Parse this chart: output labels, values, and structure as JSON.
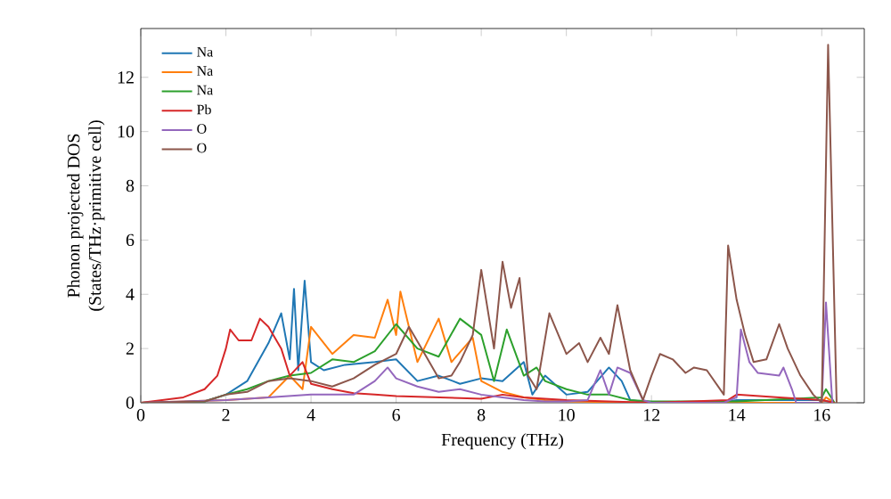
{
  "chart_data": {
    "type": "line",
    "xlabel": "Frequency (THz)",
    "ylabel": "Phonon projected DOS\n(States/THz·primitive cell)",
    "xlim": [
      0,
      17
    ],
    "ylim": [
      0,
      13.8
    ],
    "xticks": [
      0,
      2,
      4,
      6,
      8,
      10,
      12,
      14,
      16
    ],
    "yticks": [
      0,
      2,
      4,
      6,
      8,
      10,
      12
    ],
    "legend": "top left",
    "grid": false,
    "series": [
      {
        "name": "Na",
        "color": "#1f77b4",
        "x": [
          0,
          1.5,
          2,
          2.5,
          3,
          3.3,
          3.5,
          3.6,
          3.7,
          3.85,
          4,
          4.3,
          4.8,
          5.5,
          6,
          6.5,
          7,
          7.5,
          8,
          8.5,
          9,
          9.2,
          9.5,
          10,
          10.5,
          11,
          11.3,
          11.5,
          12,
          13.8,
          14,
          15,
          16,
          16.3
        ],
        "values": [
          0,
          0.05,
          0.3,
          0.8,
          2.2,
          3.3,
          1.6,
          4.2,
          1.2,
          4.5,
          1.5,
          1.2,
          1.4,
          1.5,
          1.6,
          0.8,
          1.0,
          0.7,
          0.9,
          0.8,
          1.5,
          0.3,
          1.0,
          0.3,
          0.4,
          1.3,
          0.8,
          0.1,
          0,
          0.05,
          0.1,
          0.1,
          0.1,
          0
        ]
      },
      {
        "name": "Na",
        "color": "#ff7f0e",
        "x": [
          0,
          2,
          3,
          3.5,
          3.8,
          4,
          4.5,
          5,
          5.5,
          5.8,
          6,
          6.1,
          6.5,
          7,
          7.3,
          7.8,
          8,
          8.5,
          9,
          9.5,
          10,
          12,
          16,
          16.1,
          16.3
        ],
        "values": [
          0,
          0.1,
          0.2,
          1.0,
          0.5,
          2.8,
          1.8,
          2.5,
          2.4,
          3.8,
          2.5,
          4.1,
          1.5,
          3.1,
          1.5,
          2.4,
          0.8,
          0.4,
          0.2,
          0.1,
          0.05,
          0,
          0,
          0.2,
          0
        ]
      },
      {
        "name": "Na",
        "color": "#2ca02c",
        "x": [
          0,
          1.5,
          2,
          2.5,
          3,
          3.5,
          4,
          4.5,
          5,
          5.5,
          6,
          6.5,
          7,
          7.5,
          8,
          8.3,
          8.6,
          9,
          9.3,
          9.5,
          10,
          10.5,
          11,
          11.5,
          12,
          14,
          16,
          16.1,
          16.3
        ],
        "values": [
          0,
          0.05,
          0.3,
          0.5,
          0.8,
          1.0,
          1.1,
          1.6,
          1.5,
          1.9,
          2.9,
          2.0,
          1.7,
          3.1,
          2.5,
          0.8,
          2.7,
          1.0,
          1.3,
          0.8,
          0.5,
          0.3,
          0.3,
          0.1,
          0.05,
          0.05,
          0.2,
          0.5,
          0
        ]
      },
      {
        "name": "Pb",
        "color": "#d62728",
        "x": [
          0,
          1,
          1.5,
          1.8,
          2,
          2.1,
          2.3,
          2.6,
          2.8,
          3,
          3.3,
          3.5,
          3.8,
          4,
          4.5,
          5,
          5.5,
          6,
          7,
          8,
          8.5,
          9,
          10,
          12,
          13.8,
          14,
          15,
          16,
          16.3
        ],
        "values": [
          0,
          0.2,
          0.5,
          1.0,
          2.0,
          2.7,
          2.3,
          2.3,
          3.1,
          2.8,
          2.0,
          1.0,
          1.5,
          0.7,
          0.5,
          0.35,
          0.3,
          0.25,
          0.2,
          0.15,
          0.3,
          0.2,
          0.1,
          0,
          0.1,
          0.3,
          0.2,
          0.1,
          0
        ]
      },
      {
        "name": "O",
        "color": "#9467bd",
        "x": [
          0,
          2,
          3,
          4,
          5,
          5.5,
          5.8,
          6,
          6.5,
          7,
          7.5,
          8,
          8.5,
          9,
          9.5,
          10,
          10.5,
          10.8,
          11,
          11.2,
          11.5,
          11.8,
          12,
          13.7,
          14,
          14.1,
          14.3,
          14.5,
          15,
          15.1,
          15.3,
          15.4,
          16,
          16.1,
          16.25
        ],
        "values": [
          0,
          0.1,
          0.2,
          0.3,
          0.3,
          0.8,
          1.3,
          0.9,
          0.6,
          0.4,
          0.5,
          0.3,
          0.2,
          0.1,
          0.05,
          0.05,
          0.1,
          1.2,
          0.3,
          1.3,
          1.1,
          0.1,
          0,
          0,
          0.2,
          2.7,
          1.5,
          1.1,
          1.0,
          1.3,
          0.5,
          0,
          0,
          3.7,
          0
        ]
      },
      {
        "name": "O",
        "color": "#8c564b",
        "x": [
          0,
          1.5,
          2,
          2.5,
          3,
          3.5,
          4,
          4.5,
          5,
          5.5,
          6,
          6.3,
          6.6,
          7,
          7.3,
          7.5,
          7.8,
          8,
          8.3,
          8.5,
          8.7,
          8.9,
          9.1,
          9.3,
          9.6,
          10,
          10.3,
          10.5,
          10.8,
          11,
          11.2,
          11.5,
          11.8,
          12,
          12.2,
          12.5,
          12.8,
          13,
          13.3,
          13.7,
          13.8,
          14,
          14.2,
          14.4,
          14.7,
          15,
          15.2,
          15.5,
          15.8,
          16,
          16.15,
          16.35
        ],
        "values": [
          0,
          0.05,
          0.3,
          0.4,
          0.8,
          0.9,
          0.8,
          0.6,
          0.9,
          1.4,
          1.8,
          2.8,
          2.0,
          0.9,
          1.0,
          1.5,
          2.5,
          4.9,
          2.0,
          5.2,
          3.5,
          4.6,
          1.0,
          0.5,
          3.3,
          1.8,
          2.2,
          1.5,
          2.4,
          1.8,
          3.6,
          1.2,
          0.1,
          1.0,
          1.8,
          1.6,
          1.1,
          1.3,
          1.2,
          0.3,
          5.8,
          3.8,
          2.5,
          1.5,
          1.6,
          2.9,
          2.0,
          1.0,
          0.3,
          0,
          13.2,
          0
        ]
      }
    ]
  }
}
